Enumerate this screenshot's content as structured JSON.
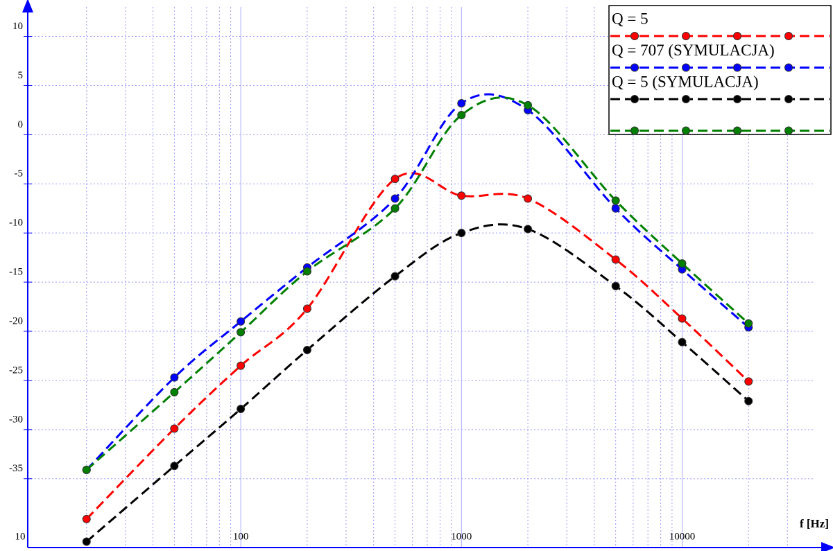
{
  "chart_data": {
    "type": "line",
    "x_label": "f [Hz]",
    "xscale": "log",
    "legend": "upper right",
    "grid": true,
    "x": [
      20,
      50,
      100,
      200,
      500,
      1000,
      2000,
      5000,
      10000,
      20000
    ],
    "xlim": [
      10,
      40000
    ],
    "xticks": [
      10,
      100,
      1000,
      10000
    ],
    "ylim": [
      -42,
      13
    ],
    "yticks": [
      10,
      5,
      0,
      -5,
      -10,
      -15,
      -20,
      -25,
      -30,
      -35
    ],
    "series": [
      {
        "name": "Q = 5",
        "color": "#ff0000",
        "values": [
          -39.1,
          -29.9,
          -23.5,
          -17.7,
          -4.5,
          -6.2,
          -6.5,
          -12.7,
          -18.7,
          -25.1
        ]
      },
      {
        "name": "Q = 707 (SYMULACJA)",
        "color": "#0000ff",
        "values": [
          -34.1,
          -24.7,
          -19.0,
          -13.5,
          -6.5,
          3.2,
          2.5,
          -7.5,
          -13.7,
          -19.6
        ]
      },
      {
        "name": "Q = 5 (SYMULACJA)",
        "color": "#000000",
        "values": [
          -41.4,
          -33.7,
          -27.9,
          -21.9,
          -14.4,
          -10.0,
          -9.6,
          -15.4,
          -21.1,
          -27.1
        ]
      },
      {
        "name": null,
        "color": "#008000",
        "values": [
          -34.1,
          -26.2,
          -20.1,
          -13.9,
          -7.5,
          2.0,
          3.0,
          -6.7,
          -13.1,
          -19.2
        ]
      }
    ]
  }
}
